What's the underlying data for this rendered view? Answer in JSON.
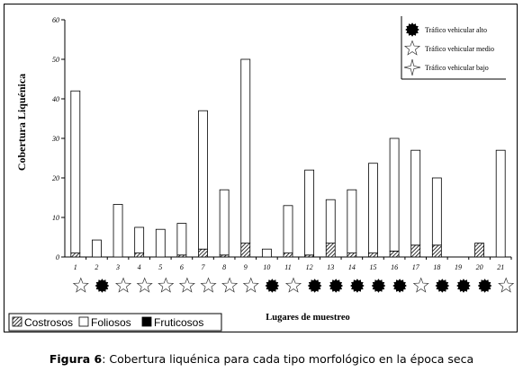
{
  "chart_data": {
    "type": "bar",
    "stacked": true,
    "categories": [
      "1",
      "2",
      "3",
      "4",
      "5",
      "6",
      "7",
      "8",
      "9",
      "10",
      "11",
      "12",
      "13",
      "14",
      "15",
      "16",
      "17",
      "18",
      "19",
      "20",
      "21"
    ],
    "series": [
      {
        "name": "Costrosos",
        "pattern": "hatched",
        "values": [
          1,
          0,
          0,
          1,
          0,
          0.5,
          2,
          0.5,
          3.5,
          0,
          1,
          0.5,
          3.5,
          1,
          1,
          1.5,
          3,
          3,
          0,
          3.5,
          0
        ]
      },
      {
        "name": "Foliosos",
        "pattern": "white",
        "values": [
          41,
          4.3,
          13.3,
          6.5,
          7,
          8,
          35,
          16.5,
          46.5,
          2,
          12,
          21.5,
          11,
          16,
          22.7,
          28.5,
          24,
          17,
          0,
          0,
          27
        ]
      },
      {
        "name": "Fruticosos",
        "pattern": "black",
        "values": [
          0,
          0,
          0,
          0,
          0,
          0,
          0,
          0,
          0,
          0,
          0,
          0,
          0,
          0,
          0,
          0,
          0,
          0,
          0,
          0,
          0
        ]
      }
    ],
    "traffic": [
      "medio",
      "alto",
      "medio",
      "medio",
      "medio",
      "medio",
      "medio",
      "medio",
      "medio",
      "alto",
      "medio",
      "alto",
      "alto",
      "alto",
      "alto",
      "alto",
      "medio",
      "alto",
      "alto",
      "alto",
      "medio"
    ],
    "ylabel": "Cobertura Liquénica",
    "xlabel": "Lugares de muestreo",
    "ylim": [
      0,
      60
    ],
    "yticks": [
      0,
      10,
      20,
      30,
      40,
      50,
      60
    ],
    "legend": {
      "placement": "bottom-left",
      "items": [
        "Costrosos",
        "Foliosos",
        "Fruticosos"
      ]
    },
    "traffic_legend": {
      "placement": "top-right",
      "items": [
        {
          "symbol": "alto",
          "label": "Tráfico vehicular alto"
        },
        {
          "symbol": "medio",
          "label": "Tráfico vehicular medio"
        },
        {
          "symbol": "bajo",
          "label": "Tráfico vehicular bajo"
        }
      ]
    }
  },
  "caption": {
    "label": "Figura  6",
    "text": ": Cobertura liquénica para cada tipo morfológico en la época seca"
  },
  "colors": {
    "bar_edge": "#000000",
    "foliosos_fill": "#ffffff",
    "fruticosos_fill": "#000000"
  }
}
